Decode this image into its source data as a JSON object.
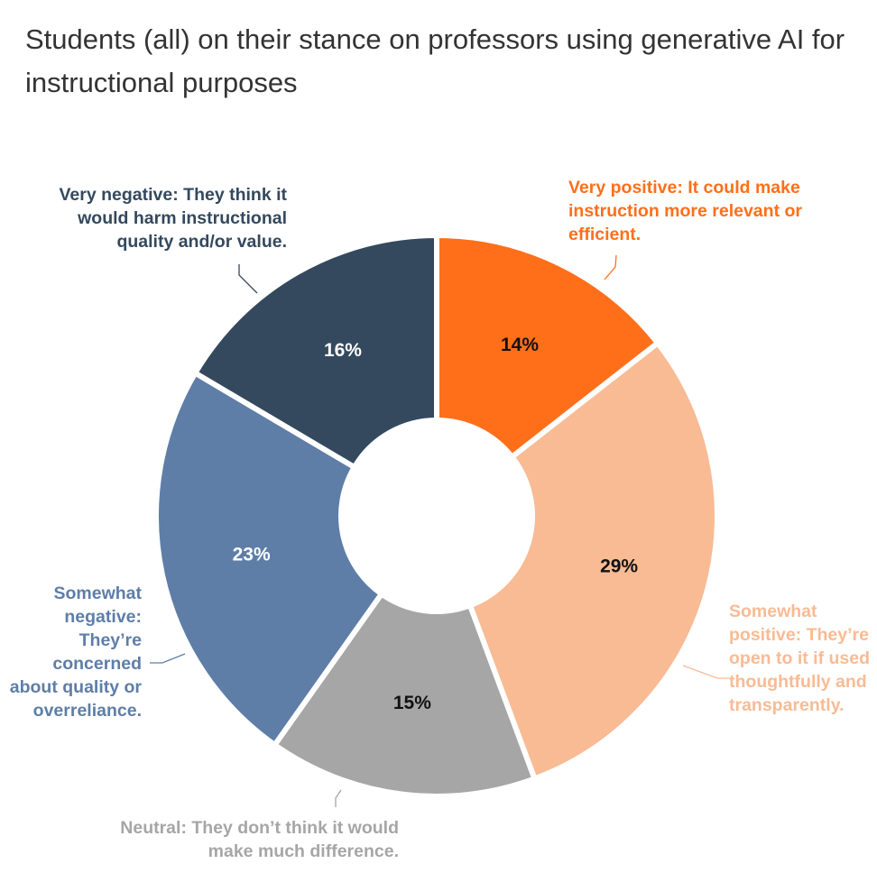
{
  "chart_data": {
    "type": "pie",
    "title": "Students (all) on their stance on professors using generative AI for instructional purposes",
    "categories": [
      "Very positive: It could make instruction more relevant or efficient.",
      "Somewhat positive: They’re open to it if used thoughtfully and transparently.",
      "Neutral: They don’t think it would make much difference.",
      "Somewhat negative: They’re concerned about quality or overreliance.",
      "Very negative: They think it would harm instructional quality and/or value."
    ],
    "values": [
      14,
      29,
      15,
      23,
      16
    ],
    "value_labels": [
      "14%",
      "29%",
      "15%",
      "23%",
      "16%"
    ],
    "colors": [
      "#ff6f1a",
      "#f9bb94",
      "#a6a6a6",
      "#5e7ea8",
      "#34495e"
    ],
    "donut": true
  }
}
